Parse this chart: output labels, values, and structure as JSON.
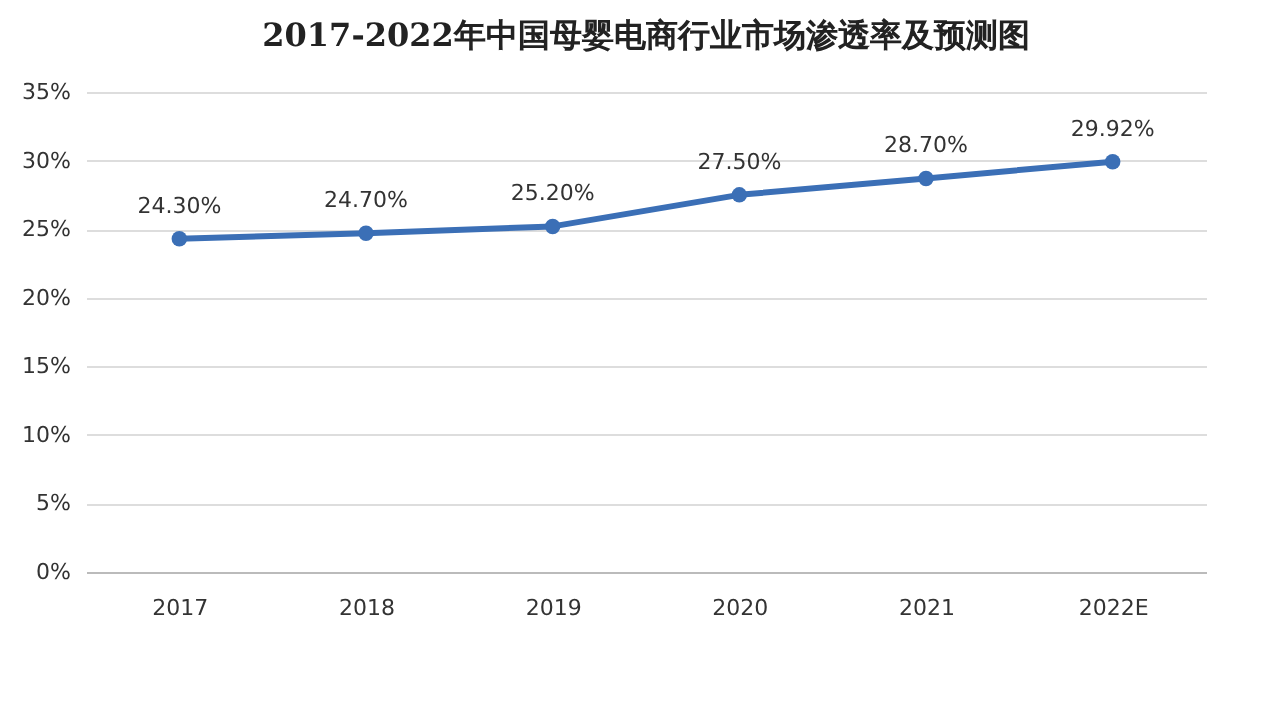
{
  "chart_data": {
    "type": "line",
    "title": "2017-2022年中国母婴电商行业市场渗透率及预测图",
    "categories": [
      "2017",
      "2018",
      "2019",
      "2020",
      "2021",
      "2022E"
    ],
    "series": [
      {
        "color": "#3b6fb6",
        "values": [
          24.3,
          24.7,
          25.2,
          27.5,
          28.7,
          29.92
        ],
        "value_labels": [
          "24.30%",
          "24.70%",
          "25.20%",
          "27.50%",
          "28.70%",
          "29.92%"
        ]
      }
    ],
    "ylim": [
      0,
      35
    ],
    "yticks": [
      {
        "value": 0,
        "label": "0%"
      },
      {
        "value": 5,
        "label": "5%"
      },
      {
        "value": 10,
        "label": "10%"
      },
      {
        "value": 15,
        "label": "15%"
      },
      {
        "value": 20,
        "label": "20%"
      },
      {
        "value": 25,
        "label": "25%"
      },
      {
        "value": 30,
        "label": "30%"
      },
      {
        "value": 35,
        "label": "35%"
      }
    ],
    "grid": "y",
    "marker": "circle",
    "line_style": "solid"
  }
}
